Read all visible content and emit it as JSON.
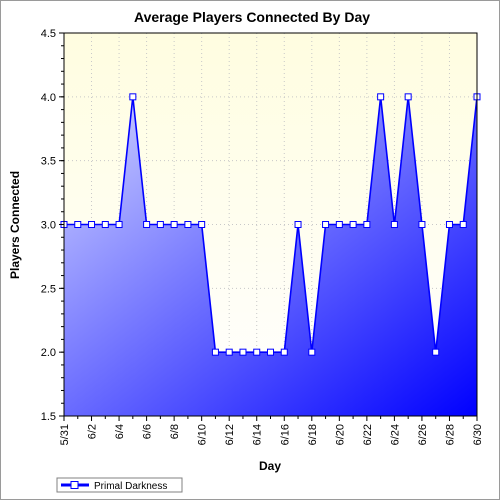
{
  "chart_data": {
    "type": "area",
    "title": "Average Players Connected By Day",
    "xlabel": "Day",
    "ylabel": "Players Connected",
    "ylim": [
      1.5,
      4.5
    ],
    "yticks": [
      "1.5",
      "2.0",
      "2.5",
      "3.0",
      "3.5",
      "4.0",
      "4.5"
    ],
    "x": [
      "5/31",
      "6/1",
      "6/2",
      "6/3",
      "6/4",
      "6/5",
      "6/6",
      "6/7",
      "6/8",
      "6/9",
      "6/10",
      "6/11",
      "6/12",
      "6/13",
      "6/14",
      "6/15",
      "6/16",
      "6/17",
      "6/18",
      "6/19",
      "6/20",
      "6/21",
      "6/22",
      "6/23",
      "6/24",
      "6/25",
      "6/26",
      "6/27",
      "6/28",
      "6/29",
      "6/30"
    ],
    "xtick_labels": [
      "5/31",
      "6/2",
      "6/4",
      "6/6",
      "6/8",
      "6/10",
      "6/12",
      "6/14",
      "6/16",
      "6/18",
      "6/20",
      "6/22",
      "6/24",
      "6/26",
      "6/28",
      "6/30"
    ],
    "series": [
      {
        "name": "Primal Darkness",
        "values": [
          3,
          3,
          3,
          3,
          3,
          4,
          3,
          3,
          3,
          3,
          3,
          2,
          2,
          2,
          2,
          2,
          2,
          3,
          2,
          3,
          3,
          3,
          3,
          4,
          3,
          4,
          3,
          2,
          3,
          3,
          4
        ]
      }
    ],
    "grid": true,
    "legend": "bottom-left",
    "colors": {
      "plot_bg_top": "#fffde0",
      "plot_bg_bottom": "#ffffff",
      "line": "#0000ff",
      "fill_light": "#d2d6ff",
      "fill_dark": "#0000ff",
      "marker_fill": "#ffffff"
    }
  }
}
